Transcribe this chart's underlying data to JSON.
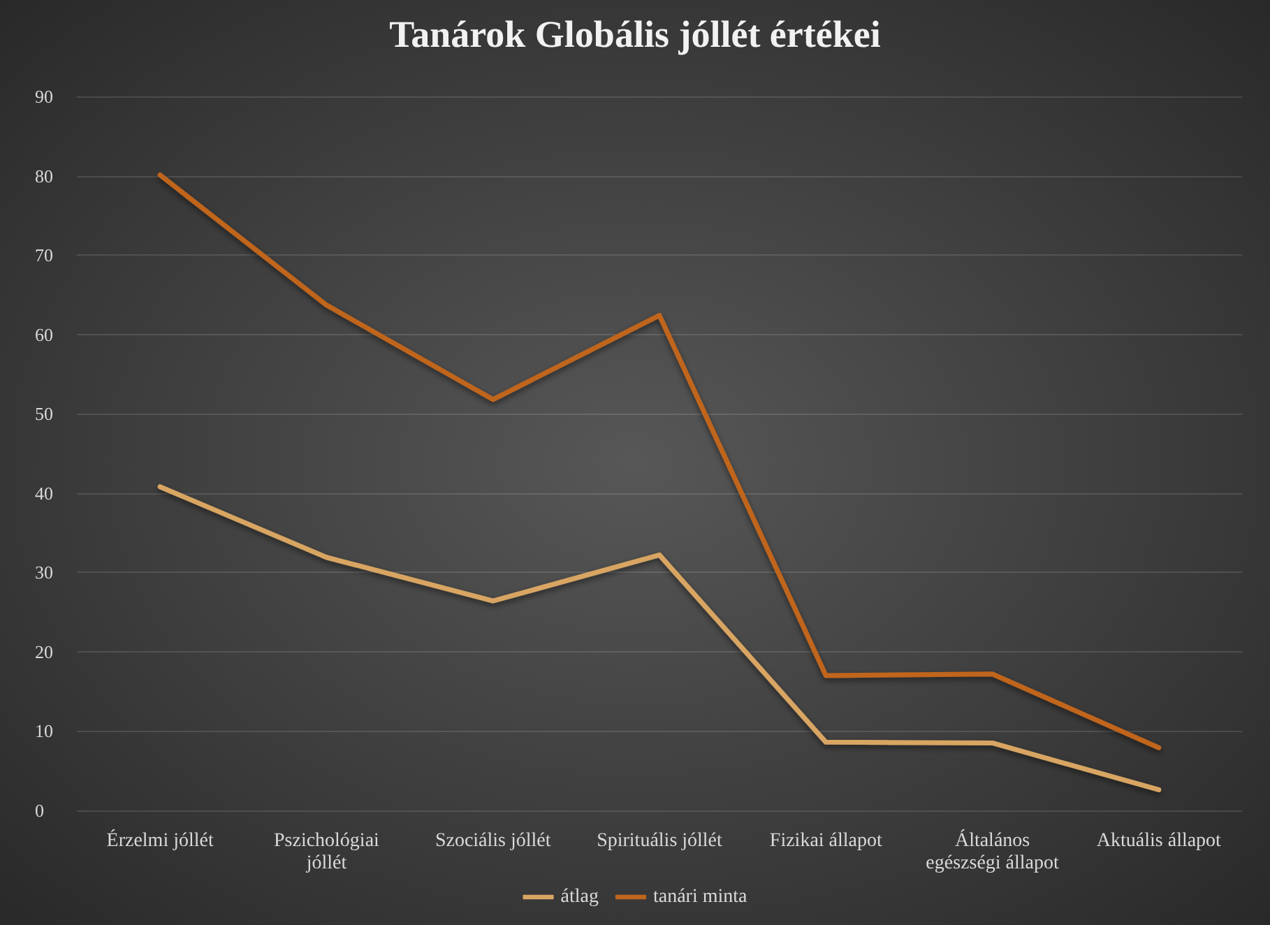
{
  "chart_data": {
    "type": "line",
    "title": "Tanárok Globális jóllét értékei",
    "categories": [
      "Érzelmi jóllét",
      "Pszichológiai jóllét",
      "Szociális jóllét",
      "Spirituális jóllét",
      "Fizikai állapot",
      "Általános egészségi állapot",
      "Aktuális állapot"
    ],
    "series": [
      {
        "name": "átlag",
        "color": "#d8a562",
        "values": [
          40.8,
          31.9,
          26.4,
          32.2,
          8.6,
          8.5,
          2.6
        ]
      },
      {
        "name": "tanári minta",
        "color": "#c0651c",
        "values": [
          80.1,
          63.7,
          51.8,
          62.4,
          17.0,
          17.2,
          7.9
        ]
      }
    ],
    "ylim": [
      0,
      90
    ],
    "yticks": [
      0,
      10,
      20,
      30,
      40,
      50,
      60,
      70,
      80,
      90
    ],
    "grid": "y",
    "legend": "bottom",
    "marker": "none",
    "line_style": "solid"
  }
}
